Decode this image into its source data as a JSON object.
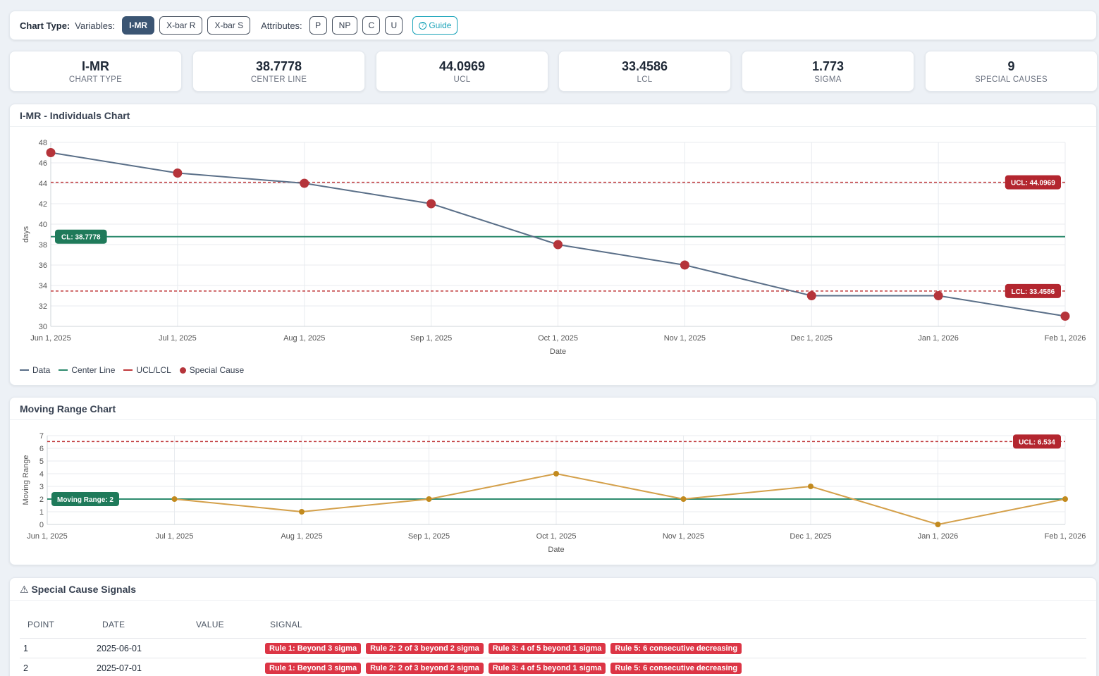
{
  "toolbar": {
    "chart_type_label": "Chart Type:",
    "variables_label": "Variables:",
    "variables": [
      "I-MR",
      "X-bar R",
      "X-bar S"
    ],
    "attributes_label": "Attributes:",
    "attributes": [
      "P",
      "NP",
      "C",
      "U"
    ],
    "guide_label": "Guide",
    "active": "I-MR"
  },
  "stats": [
    {
      "value": "I-MR",
      "label": "CHART TYPE"
    },
    {
      "value": "38.7778",
      "label": "CENTER LINE"
    },
    {
      "value": "44.0969",
      "label": "UCL"
    },
    {
      "value": "33.4586",
      "label": "LCL"
    },
    {
      "value": "1.773",
      "label": "SIGMA"
    },
    {
      "value": "9",
      "label": "SPECIAL CAUSES"
    }
  ],
  "individuals_title": "I-MR - Individuals Chart",
  "mr_title": "Moving Range Chart",
  "legend": {
    "data": "Data",
    "center": "Center Line",
    "limits": "UCL/LCL",
    "special": "Special Cause"
  },
  "colors": {
    "data": "#5a6f88",
    "center": "#2e8b6e",
    "limits": "#c0393b",
    "special": "#b5343a",
    "mr": "#d4a04a",
    "mr_point": "#c28a1e"
  },
  "chart_data": [
    {
      "type": "line",
      "title": "I-MR - Individuals Chart",
      "xlabel": "Date",
      "ylabel": "days",
      "x": [
        "Jun 1, 2025",
        "Jul 1, 2025",
        "Aug 1, 2025",
        "Sep 1, 2025",
        "Oct 1, 2025",
        "Nov 1, 2025",
        "Dec 1, 2025",
        "Jan 1, 2026",
        "Feb 1, 2026"
      ],
      "series": [
        {
          "name": "Data",
          "values": [
            47,
            45,
            44,
            42,
            38,
            36,
            33,
            33,
            31
          ]
        }
      ],
      "special_cause": [
        true,
        true,
        true,
        true,
        true,
        true,
        true,
        true,
        true
      ],
      "center_line": 38.7778,
      "ucl": 44.0969,
      "lcl": 33.4586,
      "cl_label": "CL: 38.7778",
      "ucl_label": "UCL: 44.0969",
      "lcl_label": "LCL: 33.4586",
      "ylim": [
        30,
        48
      ],
      "yticks": [
        30,
        32,
        34,
        36,
        38,
        40,
        42,
        44,
        46,
        48
      ],
      "grid": true,
      "legend": "bottom-left"
    },
    {
      "type": "line",
      "title": "Moving Range Chart",
      "xlabel": "Date",
      "ylabel": "Moving Range",
      "x": [
        "Jun 1, 2025",
        "Jul 1, 2025",
        "Aug 1, 2025",
        "Sep 1, 2025",
        "Oct 1, 2025",
        "Nov 1, 2025",
        "Dec 1, 2025",
        "Jan 1, 2026",
        "Feb 1, 2026"
      ],
      "series": [
        {
          "name": "Moving Range",
          "values": [
            null,
            2,
            1,
            2,
            4,
            2,
            3,
            0,
            2
          ]
        }
      ],
      "center_line": 2,
      "ucl": 6.534,
      "cl_label": "Moving Range: 2",
      "ucl_label": "UCL: 6.534",
      "ylim": [
        0,
        7
      ],
      "yticks": [
        0,
        1,
        2,
        3,
        4,
        5,
        6,
        7
      ],
      "grid": true
    }
  ],
  "signals": {
    "title": "Special Cause Signals",
    "headers": [
      "POINT",
      "DATE",
      "VALUE",
      "SIGNAL"
    ],
    "rows": [
      {
        "point": "1",
        "date": "2025-06-01",
        "value": "",
        "signals": [
          "Rule 1: Beyond 3 sigma",
          "Rule 2: 2 of 3 beyond 2 sigma",
          "Rule 3: 4 of 5 beyond 1 sigma",
          "Rule 5: 6 consecutive decreasing"
        ]
      },
      {
        "point": "2",
        "date": "2025-07-01",
        "value": "",
        "signals": [
          "Rule 1: Beyond 3 sigma",
          "Rule 2: 2 of 3 beyond 2 sigma",
          "Rule 3: 4 of 5 beyond 1 sigma",
          "Rule 5: 6 consecutive decreasing"
        ]
      }
    ]
  }
}
